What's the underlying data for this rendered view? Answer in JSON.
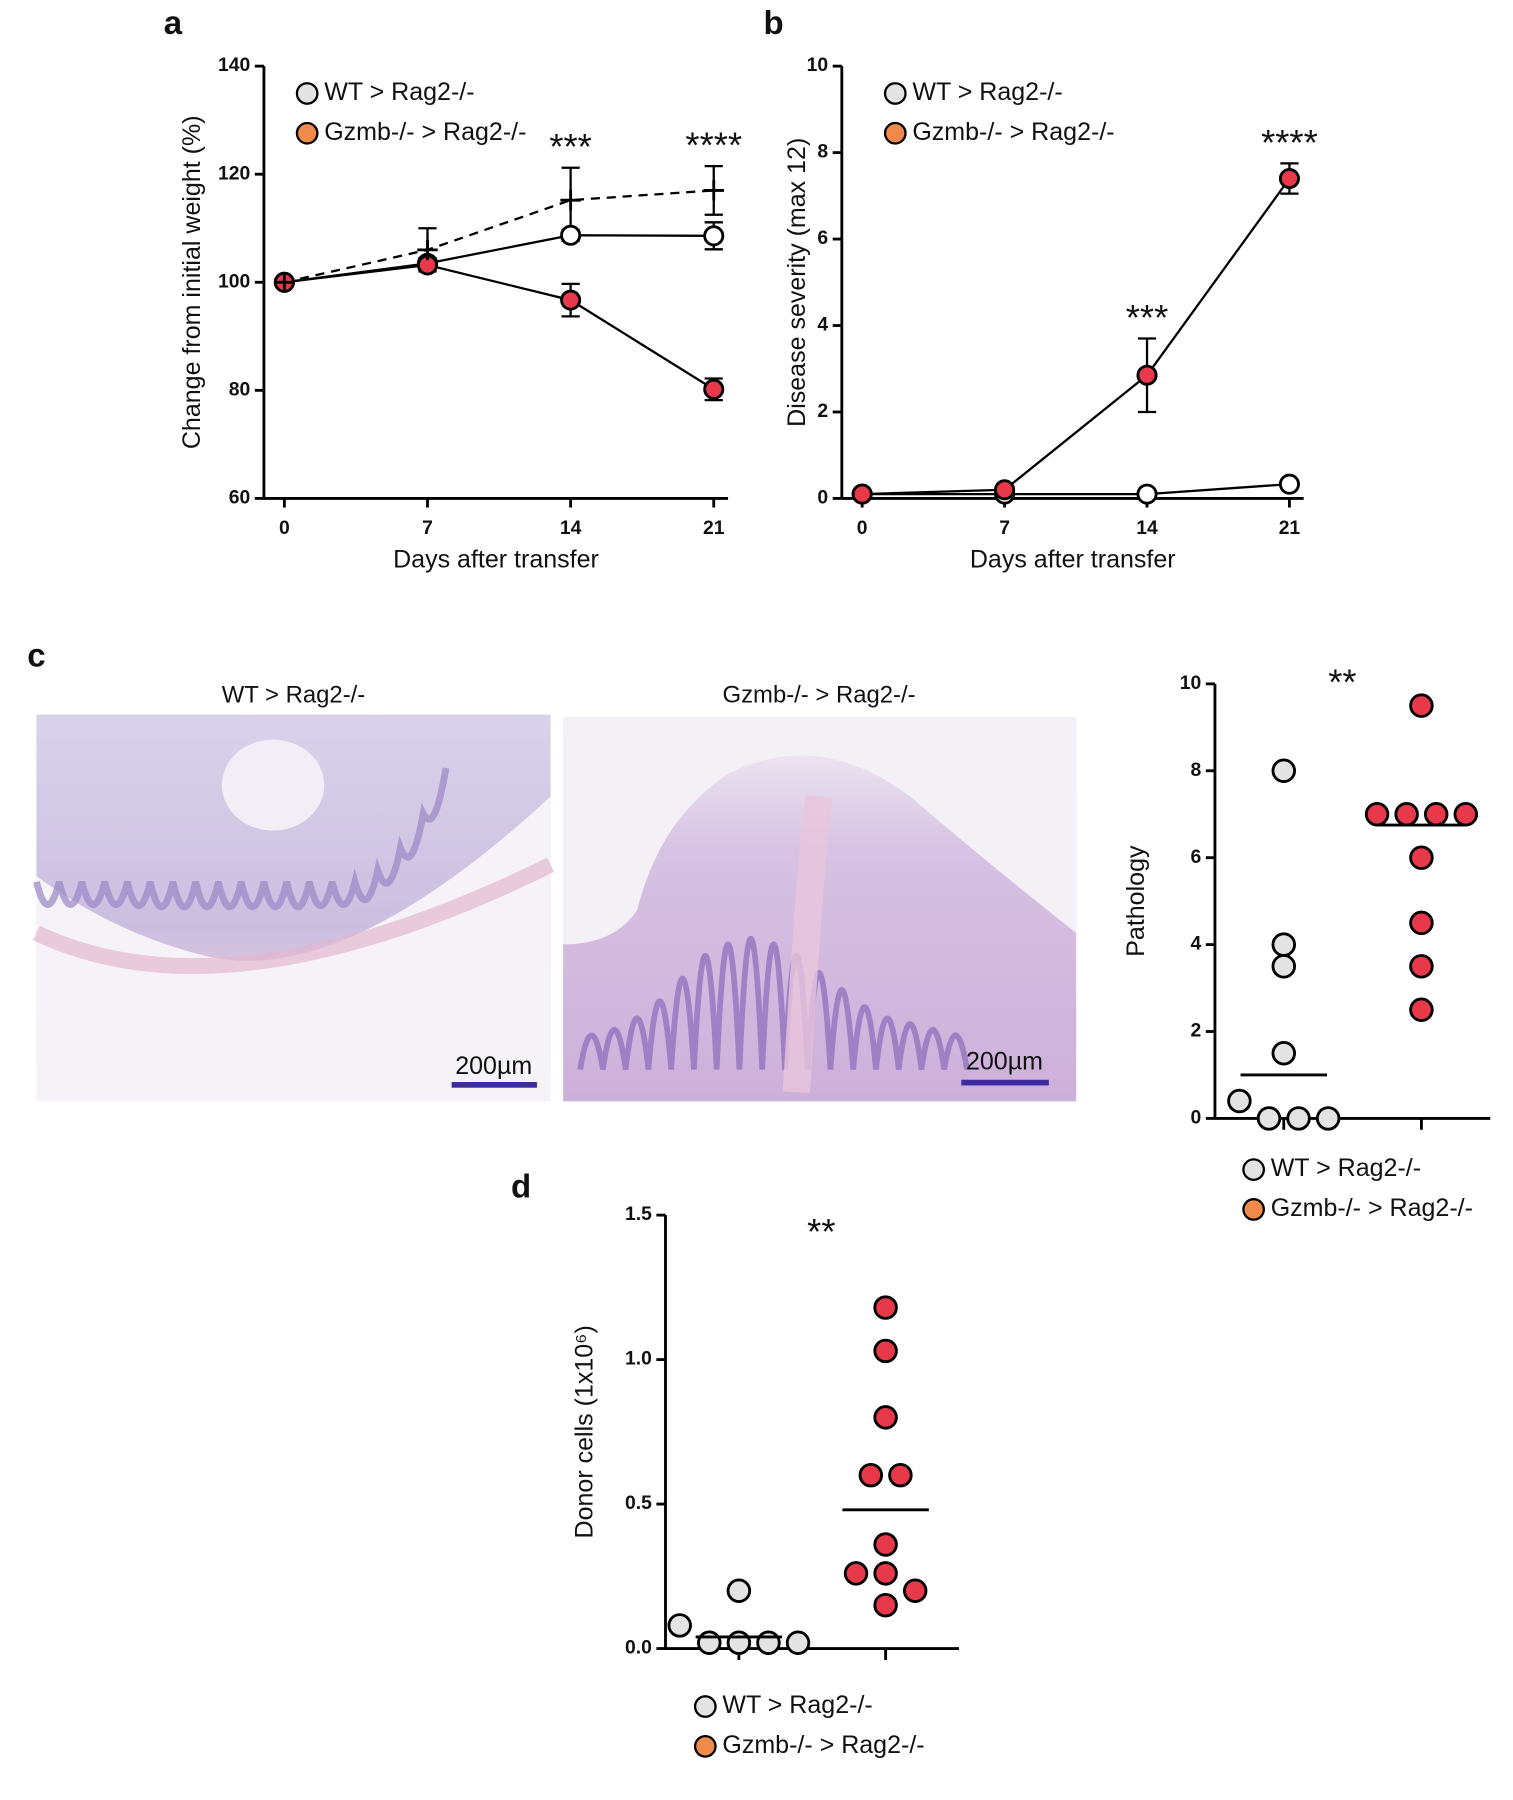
{
  "chart_data": [
    {
      "panel": "a",
      "type": "line",
      "xlabel": "Days after transfer",
      "ylabel": "Change from initial weight (%)",
      "x": [
        0,
        7,
        14,
        21
      ],
      "xlim": [
        -1,
        21.7
      ],
      "xticks": [
        0,
        7,
        14,
        21
      ],
      "ylim": [
        60,
        140
      ],
      "yticks": [
        60,
        80,
        100,
        120,
        140
      ],
      "legend": "top-left",
      "series": [
        {
          "name": "WT > Rag2-/-",
          "color": "#ffffff",
          "legend_color": "#e3e3e3",
          "marker": "circle",
          "dash": false,
          "values": [
            100,
            103.5,
            108.7,
            108.6
          ],
          "errors": [
            0,
            1,
            1,
            2.5
          ]
        },
        {
          "name": "Gzmb-/- > Rag2-/-",
          "color": "#e8394a",
          "legend_color": "#f08a4b",
          "marker": "circle",
          "dash": false,
          "values": [
            100,
            103.2,
            96.7,
            80.2
          ],
          "errors": [
            0,
            1,
            3,
            2
          ]
        },
        {
          "color": "#000000",
          "marker": "plus",
          "dash": true,
          "values": [
            100,
            106,
            115.2,
            117
          ],
          "errors": [
            0,
            4,
            6,
            4.5
          ]
        }
      ],
      "annotations": [
        {
          "text": "***",
          "x": 14
        },
        {
          "text": "****",
          "x": 21
        }
      ]
    },
    {
      "panel": "b",
      "type": "line",
      "xlabel": "Days after transfer",
      "ylabel": "Disease severity (max 12)",
      "x": [
        0,
        7,
        14,
        21
      ],
      "xlim": [
        -1,
        21.7
      ],
      "xticks": [
        0,
        7,
        14,
        21
      ],
      "ylim": [
        0,
        10
      ],
      "yticks": [
        0,
        2,
        4,
        6,
        8,
        10
      ],
      "legend": "top-left",
      "series": [
        {
          "name": "WT > Rag2-/-",
          "color": "#ffffff",
          "legend_color": "#e3e3e3",
          "marker": "circle",
          "dash": false,
          "values": [
            0.1,
            0.1,
            0.1,
            0.33
          ],
          "errors": [
            0,
            0,
            0,
            0
          ]
        },
        {
          "name": "Gzmb-/- > Rag2-/-",
          "color": "#e8394a",
          "legend_color": "#f08a4b",
          "marker": "circle",
          "dash": false,
          "values": [
            0.1,
            0.2,
            2.85,
            7.4
          ],
          "errors": [
            0,
            0,
            0.85,
            0.35
          ]
        }
      ],
      "annotations": [
        {
          "text": "***",
          "x": 14
        },
        {
          "text": "****",
          "x": 21
        }
      ]
    },
    {
      "panel": "c",
      "type": "strip",
      "ylabel": "Pathology",
      "ylim": [
        0,
        10
      ],
      "yticks": [
        0,
        2,
        4,
        6,
        8,
        10
      ],
      "legend": "bottom",
      "series": [
        {
          "name": "WT > Rag2-/-",
          "color": "#e3e3e3",
          "legend_color": "#e3e3e3",
          "values": [
            8,
            4,
            3.5,
            1.5,
            0.4,
            0,
            0,
            0
          ],
          "center": 1.0
        },
        {
          "name": "Gzmb-/- > Rag2-/-",
          "color": "#e8394a",
          "legend_color": "#f08a4b",
          "values": [
            9.5,
            7,
            7,
            7,
            7,
            6,
            4.5,
            3.5,
            2.5
          ],
          "center": 6.75
        }
      ],
      "annotations": [
        {
          "text": "**"
        }
      ]
    },
    {
      "panel": "d",
      "type": "strip",
      "ylabel": "Donor cells (1x10⁶)",
      "ylim": [
        0,
        1.5
      ],
      "yticks": [
        {
          "value": 0,
          "label": "0.0"
        },
        {
          "value": 0.5,
          "label": "0.5"
        },
        {
          "value": 1,
          "label": "1.0"
        },
        {
          "value": 1.5,
          "label": "1.5"
        }
      ],
      "legend": "bottom",
      "series": [
        {
          "name": "WT > Rag2-/-",
          "color": "#e3e3e3",
          "legend_color": "#e3e3e3",
          "values": [
            0.2,
            0.08,
            0.02,
            0.02,
            0.02,
            0.02
          ],
          "center": 0.04
        },
        {
          "name": "Gzmb-/- > Rag2-/-",
          "color": "#e8394a",
          "legend_color": "#f08a4b",
          "values": [
            1.18,
            1.03,
            0.8,
            0.6,
            0.6,
            0.36,
            0.26,
            0.26,
            0.2,
            0.15
          ],
          "center": 0.48
        }
      ],
      "annotations": [
        {
          "text": "**"
        }
      ]
    }
  ],
  "histology": {
    "images": [
      {
        "caption": "WT > Rag2-/-",
        "scale_bar": "200µm"
      },
      {
        "caption": "Gzmb-/- > Rag2-/-",
        "scale_bar": "200µm"
      }
    ]
  }
}
